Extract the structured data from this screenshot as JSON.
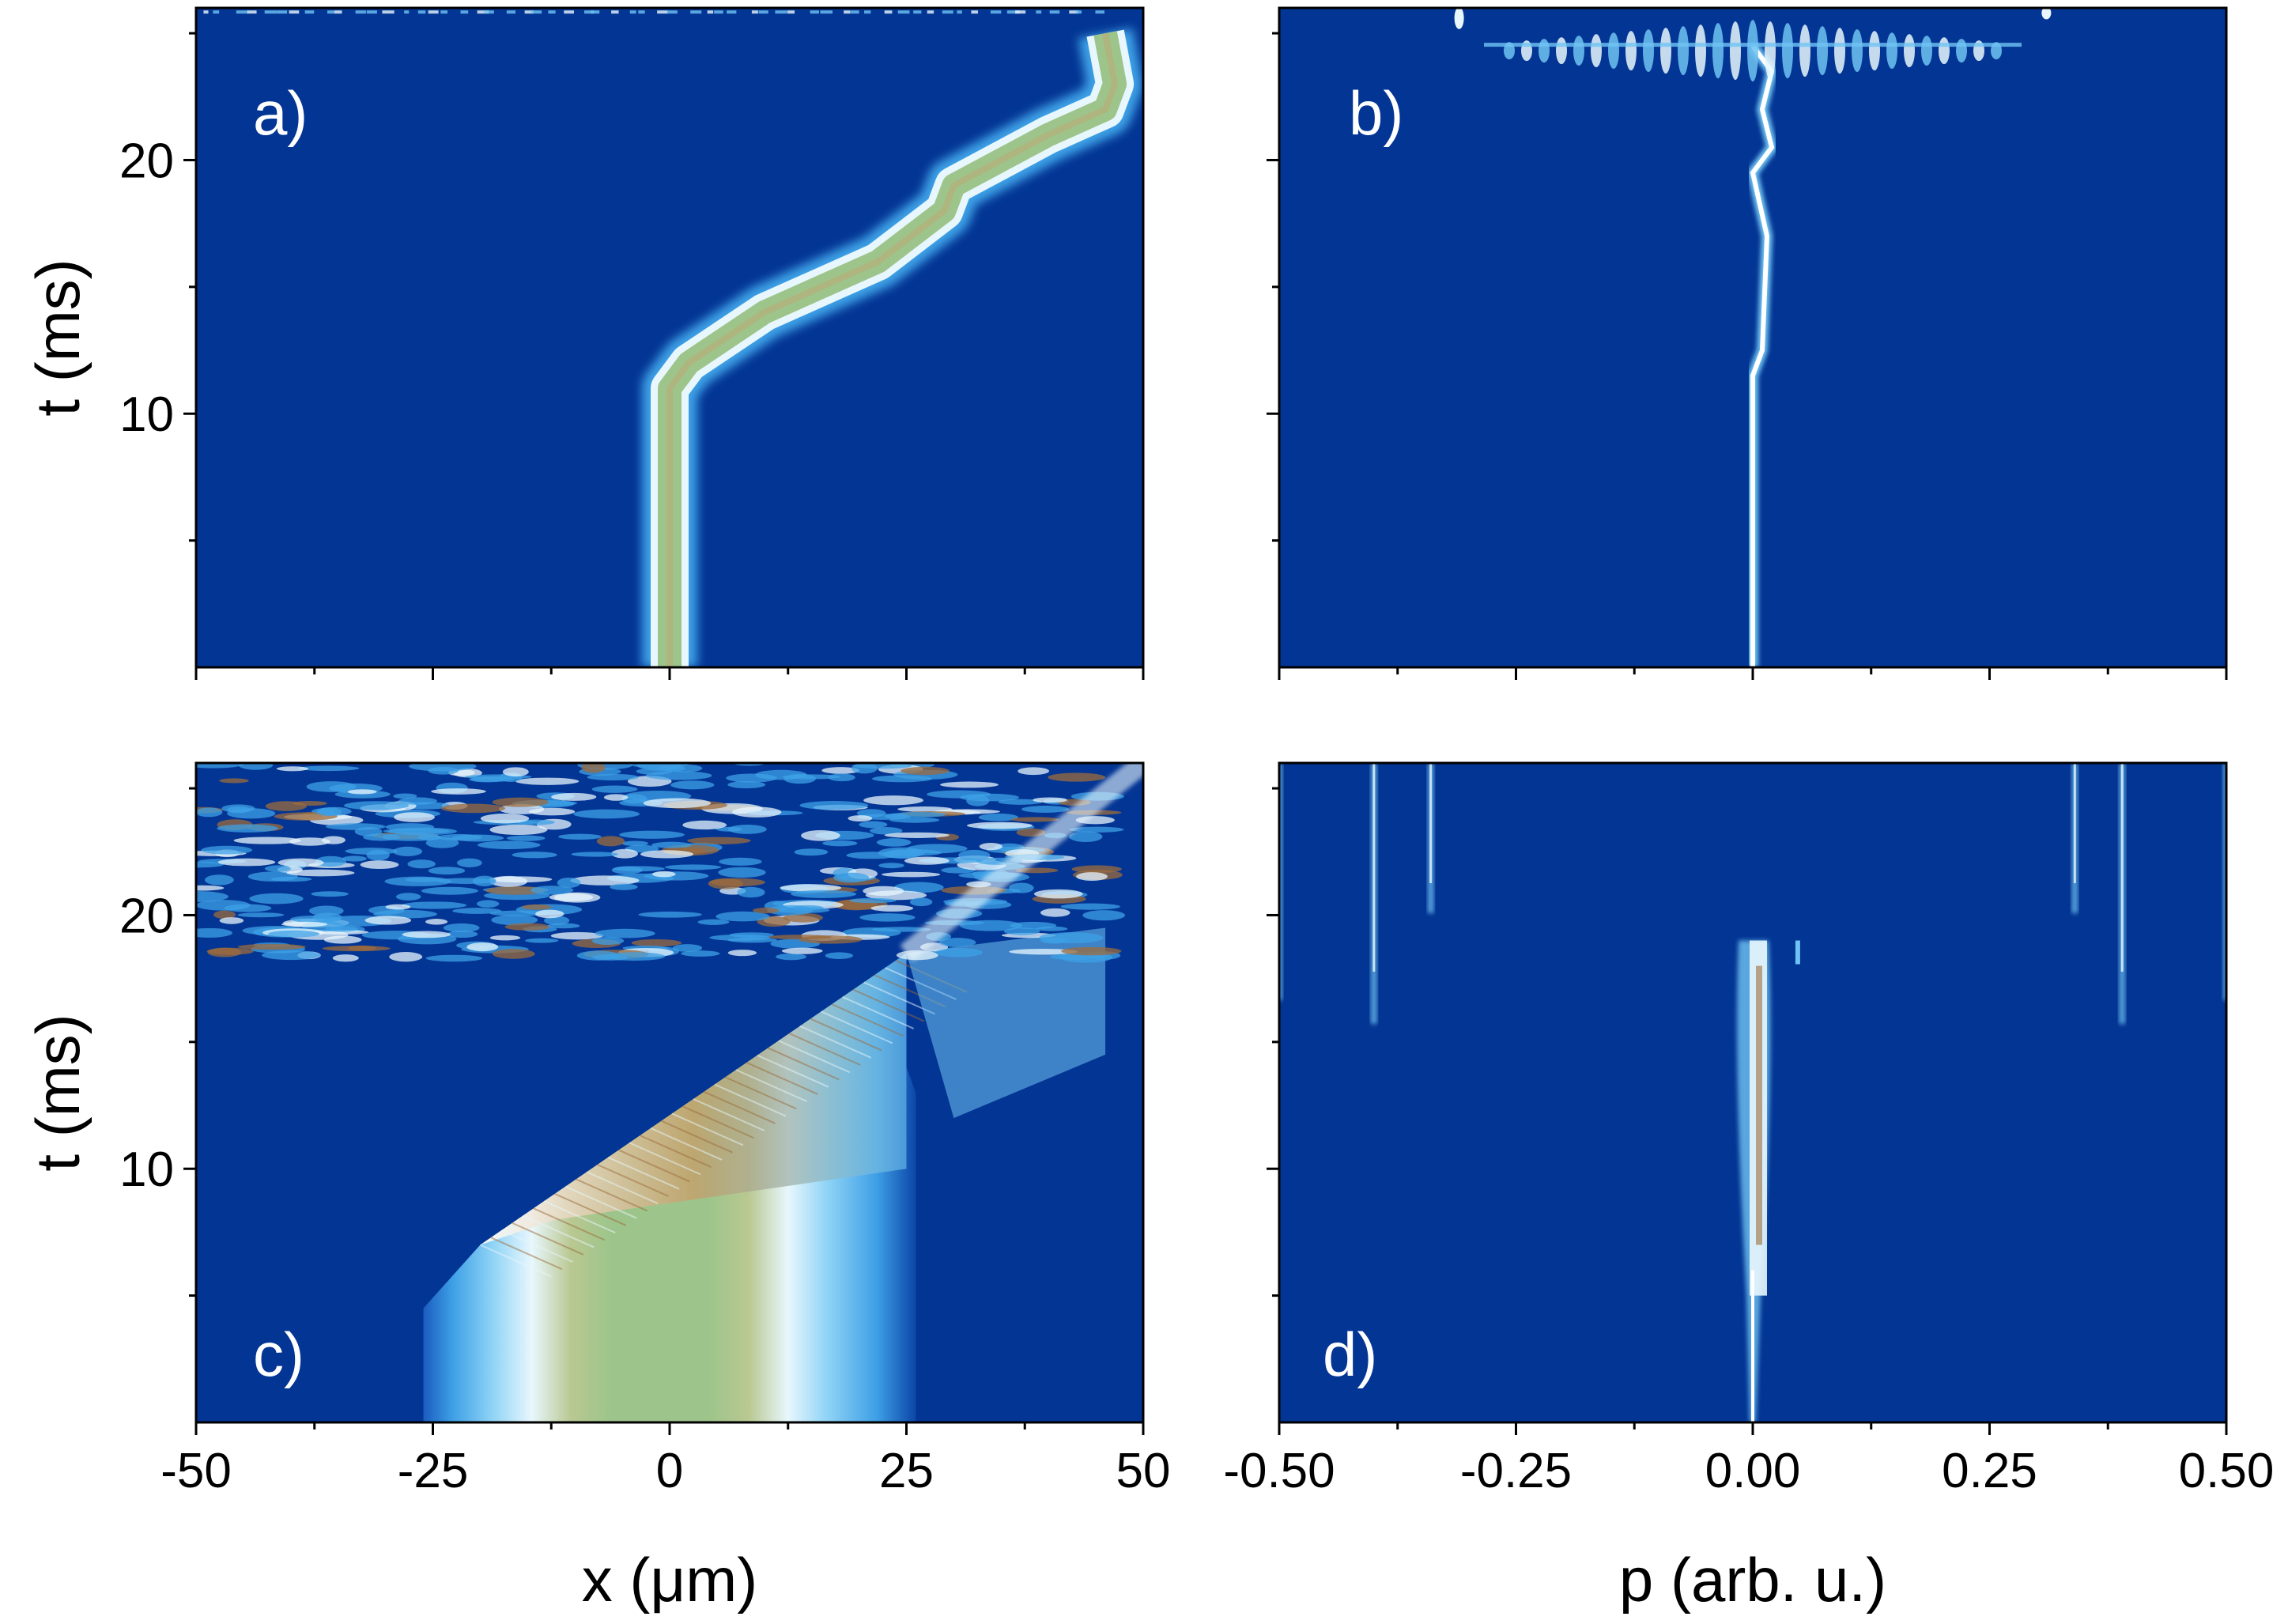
{
  "colors": {
    "background": "#033594",
    "light_blue": "#6fc3f2",
    "pale_blue": "#d6f0fc",
    "green": "#9dc58b",
    "olive": "#b3b07a",
    "brown": "#9c6b3c",
    "white": "#ffffff"
  },
  "chart_data": [
    {
      "id": "a",
      "type": "heatmap",
      "panel_label": "a)",
      "xlim": [
        -50,
        50
      ],
      "ylim": [
        0,
        26
      ],
      "ylabel": "t (ms)",
      "y_ticks": [
        "10",
        "20"
      ],
      "x_ticks": [],
      "density_ridge": {
        "description_points": [
          [
            0,
            0
          ],
          [
            0,
            11
          ],
          [
            2,
            12
          ],
          [
            10,
            14
          ],
          [
            22,
            16
          ],
          [
            29,
            18
          ],
          [
            30,
            19
          ],
          [
            40,
            21
          ],
          [
            46,
            22
          ],
          [
            47,
            23
          ],
          [
            46,
            25
          ]
        ],
        "width_um": 3
      }
    },
    {
      "id": "b",
      "type": "heatmap",
      "panel_label": "b)",
      "xlim": [
        -0.5,
        0.5
      ],
      "ylim": [
        0,
        26
      ],
      "y_ticks": [],
      "x_ticks": [],
      "momentum_ridge": {
        "points": [
          [
            0.0,
            0
          ],
          [
            0.0,
            11.5
          ],
          [
            0.01,
            12.5
          ],
          [
            0.015,
            17
          ],
          [
            0.0,
            19.5
          ],
          [
            0.02,
            20.5
          ],
          [
            0.01,
            22
          ],
          [
            0.02,
            23.5
          ],
          [
            0.0,
            24.5
          ]
        ],
        "burst_time_ms": 24.5
      }
    },
    {
      "id": "c",
      "type": "heatmap",
      "panel_label": "c)",
      "xlim": [
        -50,
        50
      ],
      "ylim": [
        0,
        26
      ],
      "xlabel": "x (μm)",
      "ylabel": "t (ms)",
      "x_ticks": [
        "-50",
        "-25",
        "0",
        "25",
        "50"
      ],
      "y_ticks": [
        "10",
        "20"
      ],
      "cloud": {
        "initial_extent_um": [
          -26,
          26
        ],
        "onset_time_ms": 4.5,
        "front_points": [
          [
            -26,
            4.5
          ],
          [
            -20,
            7
          ],
          [
            25,
            18.5
          ]
        ],
        "turbulent_region_ms": [
          18,
          26
        ]
      }
    },
    {
      "id": "d",
      "type": "heatmap",
      "panel_label": "d)",
      "xlim": [
        -0.5,
        0.5
      ],
      "ylim": [
        0,
        26
      ],
      "xlabel": "p (arb. u.)",
      "x_ticks": [
        "-0.50",
        "-0.25",
        "0.00",
        "0.25",
        "0.50"
      ],
      "y_ticks": [],
      "side_peaks_p": [
        -0.5,
        -0.4,
        -0.34,
        0.34,
        0.39,
        0.5
      ],
      "central_peak_until_ms": 19
    }
  ]
}
